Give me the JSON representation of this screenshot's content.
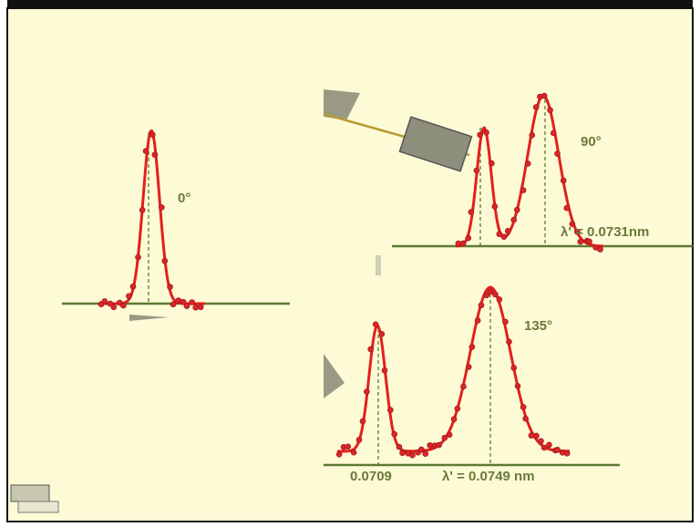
{
  "panels": [
    {
      "angle": "0°"
    },
    {
      "angle": "90°",
      "wavelength": "λ' = 0.0731nm"
    },
    {
      "angle": "135°",
      "peak_label": "0.0709",
      "wavelength": "λ' = 0.0749 nm"
    }
  ]
}
